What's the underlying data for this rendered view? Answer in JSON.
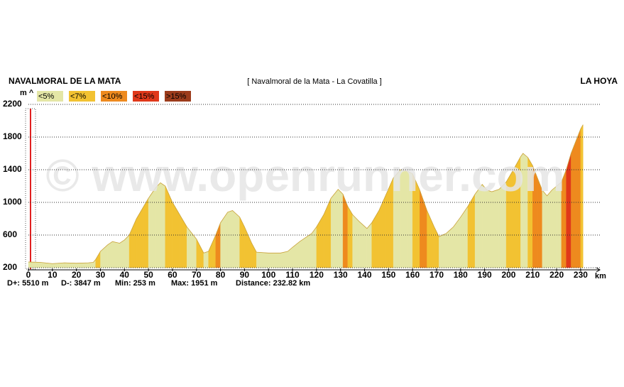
{
  "chart_data": {
    "type": "elevation",
    "title": "[ Navalmoral de la Mata - La Covatilla ]",
    "start_label": "NAVALMORAL DE LA MATA",
    "end_label": "LA HOYA",
    "watermark": "© www.openrunner.com",
    "y_label": "m ^",
    "x_label": "km",
    "stats": [
      "D+: 5510 m",
      "D-: 3847 m",
      "Min: 253 m",
      "Max: 1951 m",
      "Distance: 232.82 km"
    ],
    "legend": [
      {
        "label": "<5%",
        "color": "#e4e6a6"
      },
      {
        "label": "<7%",
        "color": "#f2c232"
      },
      {
        "label": "<10%",
        "color": "#ee8a1e"
      },
      {
        "label": "<15%",
        "color": "#e0381a"
      },
      {
        "label": ">15%",
        "color": "#9c3c1c"
      }
    ],
    "x": [
      0,
      5,
      10,
      15,
      20,
      25,
      27,
      28,
      30,
      33,
      35,
      38,
      40,
      42,
      45,
      48,
      50,
      53,
      55,
      57,
      60,
      63,
      66,
      70,
      73,
      75,
      78,
      80,
      83,
      85,
      88,
      90,
      93,
      95,
      100,
      105,
      108,
      110,
      113,
      115,
      118,
      120,
      123,
      126,
      129,
      131,
      133,
      135,
      138,
      141,
      143,
      146,
      149,
      152,
      155,
      158,
      160,
      163,
      166,
      169,
      171,
      174,
      177,
      180,
      183,
      186,
      189,
      191,
      193,
      196,
      199,
      202,
      205,
      206,
      208,
      210,
      212,
      214,
      216,
      218,
      220,
      222,
      224,
      226,
      228,
      230,
      231
    ],
    "values": [
      270,
      265,
      250,
      260,
      255,
      260,
      265,
      300,
      400,
      480,
      520,
      500,
      540,
      600,
      800,
      950,
      1050,
      1180,
      1240,
      1200,
      1000,
      850,
      700,
      550,
      380,
      400,
      600,
      750,
      880,
      900,
      820,
      700,
      500,
      390,
      380,
      380,
      400,
      450,
      520,
      560,
      620,
      700,
      850,
      1050,
      1160,
      1100,
      950,
      850,
      760,
      680,
      750,
      900,
      1100,
      1300,
      1400,
      1380,
      1350,
      1150,
      900,
      700,
      580,
      620,
      700,
      820,
      950,
      1100,
      1220,
      1150,
      1130,
      1160,
      1250,
      1400,
      1560,
      1600,
      1550,
      1450,
      1300,
      1150,
      1080,
      1150,
      1200,
      1250,
      1400,
      1600,
      1750,
      1900,
      1951
    ],
    "xlim": [
      0,
      238
    ],
    "ylim": [
      200,
      2200
    ],
    "xticks": [
      0,
      10,
      20,
      30,
      40,
      50,
      60,
      70,
      80,
      90,
      100,
      110,
      120,
      130,
      140,
      150,
      160,
      170,
      180,
      190,
      200,
      210,
      220,
      230
    ],
    "yticks": [
      200,
      600,
      1000,
      1400,
      1800,
      2200
    ],
    "grid": true
  }
}
